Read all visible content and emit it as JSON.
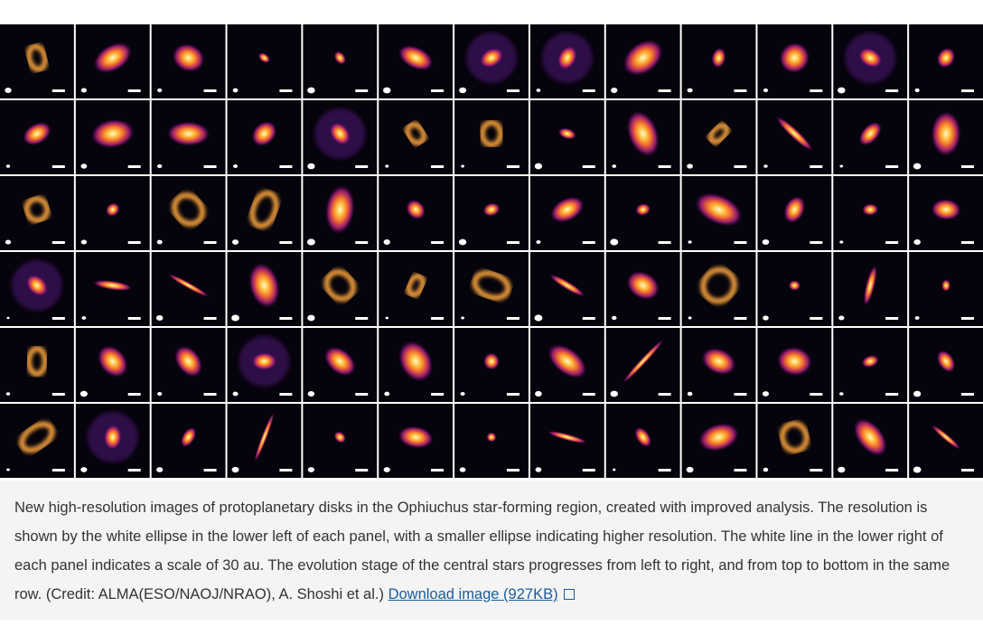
{
  "caption": {
    "text": "New high-resolution images of protoplanetary disks in the Ophiuchus star-forming region, created with improved analysis. The resolution is shown by the white ellipse in the lower left of each panel, with a smaller ellipse indicating higher resolution. The white line in the lower right of each panel indicates a scale of 30 au. The evolution stage of the central stars progresses from left to right, and from top to bottom in the same row. (Credit: ALMA(ESO/NAOJ/NRAO), A. Shoshi et al.)",
    "link": "Download image (927KB)"
  }
}
